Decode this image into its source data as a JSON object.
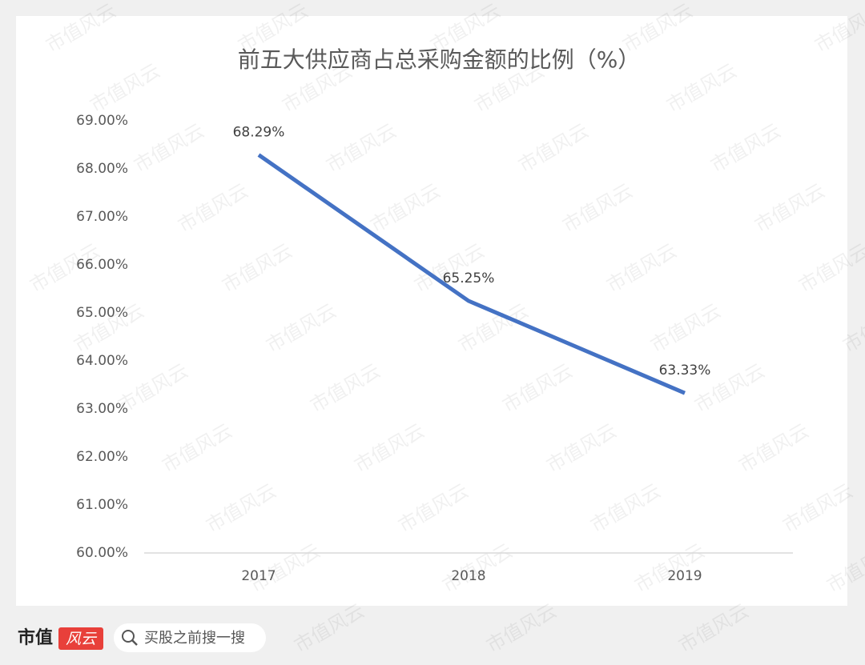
{
  "chart_data": {
    "type": "line",
    "title": "前五大供应商占总采购金额的比例（%）",
    "categories": [
      "2017",
      "2018",
      "2019"
    ],
    "values": [
      68.29,
      65.25,
      63.33
    ],
    "value_labels": [
      "68.29%",
      "65.25%",
      "63.33%"
    ],
    "color": "#4472c4",
    "ylim": [
      60,
      69
    ],
    "yticks": [
      {
        "value": 60,
        "label": "60.00%"
      },
      {
        "value": 61,
        "label": "61.00%"
      },
      {
        "value": 62,
        "label": "62.00%"
      },
      {
        "value": 63,
        "label": "63.00%"
      },
      {
        "value": 64,
        "label": "64.00%"
      },
      {
        "value": 65,
        "label": "65.00%"
      },
      {
        "value": 66,
        "label": "66.00%"
      },
      {
        "value": 67,
        "label": "67.00%"
      },
      {
        "value": 68,
        "label": "68.00%"
      },
      {
        "value": 69,
        "label": "69.00%"
      }
    ],
    "grid": false
  },
  "watermark": "市值风云",
  "footer": {
    "brand": "市值",
    "brand_logo": "风云",
    "search": "买股之前搜一搜"
  }
}
